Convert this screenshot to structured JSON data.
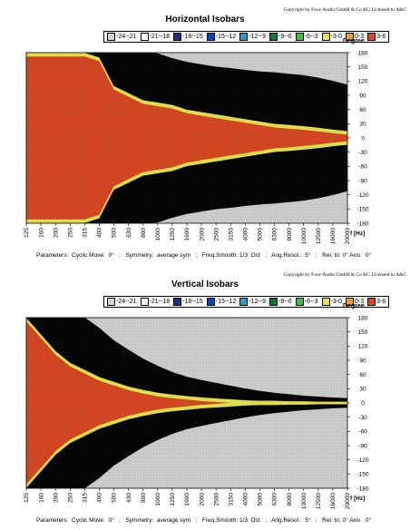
{
  "chart_data": [
    {
      "type": "heatmap",
      "copyright": "Copyright by Four-Audio GmbH & Co KG   Licensed to A&C",
      "title": "Horizontal Isobars",
      "ylabel": "Degree",
      "xlabel": "f [Hz]",
      "x_ticks": [
        "125",
        "160",
        "200",
        "250",
        "315",
        "400",
        "500",
        "630",
        "800",
        "1000",
        "1250",
        "1600",
        "2000",
        "2500",
        "3150",
        "4000",
        "5000",
        "6300",
        "8000",
        "10000",
        "12500",
        "16000",
        "20000"
      ],
      "y_ticks": [
        "180",
        "150",
        "120",
        "90",
        "60",
        "30",
        "0",
        "-30",
        "-60",
        "-90",
        "-120",
        "-150",
        "-180"
      ],
      "ylim": [
        -180,
        180
      ],
      "legend": [
        "-24--21",
        "-21--18",
        "-18--15",
        "-15--12",
        "-12--9",
        "-9--6",
        "-6--3",
        "-3-0",
        "0-3",
        "3-6"
      ],
      "colors": [
        "#d2d2d2",
        "#ffffff",
        "#1c2d8c",
        "#0044cc",
        "#20a0c8",
        "#0a7a32",
        "#3bc23b",
        "#e8e84a",
        "#f2a030",
        "#d9461e"
      ],
      "contour_half_widths_deg": {
        "x": [
          "125",
          "315",
          "400",
          "500",
          "630",
          "800",
          "1000",
          "1250",
          "1600",
          "2000",
          "2500",
          "3150",
          "4000",
          "5000",
          "6300",
          "8000",
          "10000",
          "12500",
          "16000",
          "20000"
        ],
        "levels": [
          {
            "range": "-3-0",
            "values": [
              180,
              180,
              170,
              110,
              95,
              80,
              75,
              70,
              60,
              55,
              50,
              45,
              40,
              35,
              30,
              28,
              25,
              22,
              18,
              15
            ]
          },
          {
            "range": "-6-3",
            "values": [
              180,
              180,
              180,
              135,
              115,
              100,
              92,
              87,
              78,
              72,
              68,
              62,
              57,
              52,
              47,
              44,
              40,
              38,
              33,
              28
            ]
          },
          {
            "range": "-9-6",
            "values": [
              180,
              180,
              180,
              165,
              145,
              125,
              112,
              105,
              97,
              92,
              88,
              82,
              76,
              70,
              64,
              60,
              56,
              52,
              46,
              40
            ]
          },
          {
            "range": "-12-9",
            "values": [
              180,
              180,
              180,
              180,
              170,
              150,
              135,
              125,
              117,
              112,
              108,
              102,
              97,
              92,
              87,
              82,
              77,
              72,
              65,
              58
            ]
          },
          {
            "range": "-15-12",
            "values": [
              180,
              180,
              180,
              180,
              180,
              172,
              158,
              147,
              138,
              132,
              127,
              122,
              117,
              112,
              108,
              104,
              100,
              95,
              88,
              80
            ]
          },
          {
            "range": "-18-15",
            "values": [
              180,
              180,
              180,
              180,
              180,
              180,
              178,
              168,
              160,
              155,
              150,
              147,
              143,
              140,
              138,
              135,
              132,
              127,
              120,
              112
            ]
          }
        ]
      },
      "parameters": "Parameters:  Cyclic Move:  0°   ;   Symmetry:  average sym   ;   Freq.Smooth: 1/3  Oct   ;   Ang.Resol.:  5°   ;   Rel. to: 0° Axis   0°"
    },
    {
      "type": "heatmap",
      "copyright": "Copyright by Four-Audio GmbH & Co KG   Licensed to A&C",
      "title": "Vertical Isobars",
      "ylabel": "Degree",
      "xlabel": "f [Hz]",
      "x_ticks": [
        "125",
        "160",
        "200",
        "250",
        "315",
        "400",
        "500",
        "630",
        "800",
        "1000",
        "1250",
        "1600",
        "2000",
        "2500",
        "3150",
        "4000",
        "5000",
        "6300",
        "8000",
        "10000",
        "12500",
        "16000",
        "20000"
      ],
      "y_ticks": [
        "180",
        "150",
        "120",
        "90",
        "60",
        "30",
        "0",
        "-30",
        "-60",
        "-90",
        "-120",
        "-150",
        "-180"
      ],
      "ylim": [
        -180,
        180
      ],
      "legend": [
        "-24--21",
        "-21--18",
        "-18--15",
        "-15--12",
        "-12--9",
        "-9--6",
        "-6--3",
        "-3-0",
        "0-3",
        "3-6"
      ],
      "colors": [
        "#d2d2d2",
        "#ffffff",
        "#1c2d8c",
        "#0044cc",
        "#20a0c8",
        "#0a7a32",
        "#3bc23b",
        "#e8e84a",
        "#f2a030",
        "#d9461e"
      ],
      "contour_half_widths_deg": {
        "x": [
          "125",
          "200",
          "250",
          "315",
          "400",
          "500",
          "630",
          "800",
          "1000",
          "1250",
          "1600",
          "2000",
          "2500",
          "3150",
          "4000",
          "5000",
          "6300",
          "8000",
          "10000",
          "12500",
          "16000",
          "20000"
        ],
        "levels": [
          {
            "range": "-3-0",
            "values": [
              180,
              110,
              85,
              70,
              55,
              45,
              35,
              28,
              22,
              18,
              15,
              12,
              10,
              8,
              6,
              5,
              5,
              4,
              4,
              3,
              3,
              3
            ]
          },
          {
            "range": "-6-3",
            "values": [
              180,
              135,
              115,
              95,
              78,
              62,
              50,
              40,
              32,
              26,
              22,
              18,
              15,
              12,
              10,
              8,
              7,
              6,
              5,
              5,
              4,
              4
            ]
          },
          {
            "range": "-9-6",
            "values": [
              180,
              165,
              140,
              118,
              98,
              80,
              65,
              52,
              42,
              34,
              28,
              24,
              20,
              16,
              13,
              11,
              9,
              8,
              7,
              6,
              5,
              5
            ]
          },
          {
            "range": "-12-9",
            "values": [
              180,
              180,
              165,
              140,
              118,
              98,
              80,
              65,
              52,
              42,
              35,
              30,
              25,
              20,
              16,
              13,
              11,
              10,
              9,
              8,
              7,
              6
            ]
          },
          {
            "range": "-15-12",
            "values": [
              180,
              180,
              180,
              160,
              138,
              115,
              95,
              78,
              64,
              52,
              44,
              38,
              32,
              26,
              22,
              18,
              15,
              13,
              11,
              10,
              9,
              8
            ]
          },
          {
            "range": "-18-15",
            "values": [
              180,
              180,
              180,
              180,
              158,
              132,
              112,
              93,
              78,
              65,
              55,
              48,
              42,
              36,
              30,
              25,
              21,
              18,
              15,
              13,
              11,
              10
            ]
          }
        ]
      },
      "parameters": "Parameters:  Cyclic Move:  0°   ;   Symmetry:  average sym   ;   Freq.Smooth: 1/3  Oct   ;   Ang.Resol.:  5°   ;   Rel. to: 0° Axis   0°"
    }
  ]
}
